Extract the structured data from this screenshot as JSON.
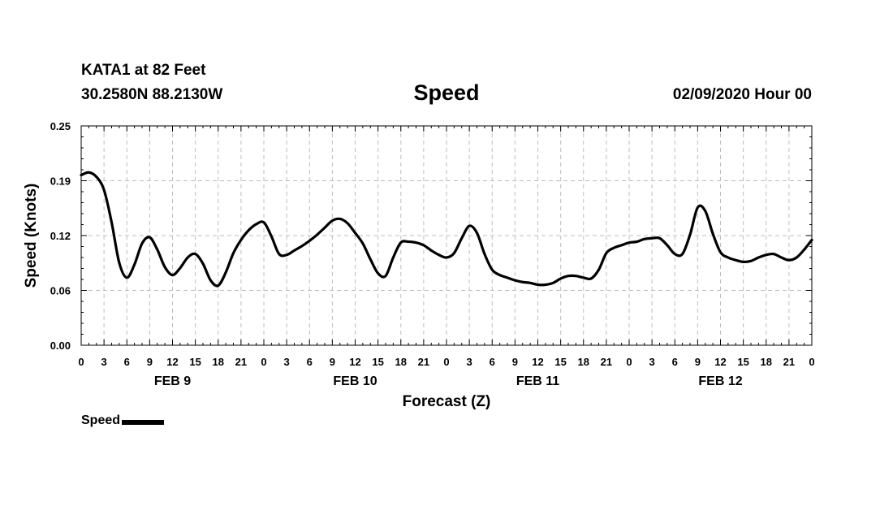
{
  "header": {
    "station": "KATA1 at 82 Feet",
    "coords": "30.2580N 88.2130W",
    "run": "02/09/2020 Hour 00"
  },
  "chart_data": {
    "type": "line",
    "title": "Speed",
    "xlabel": "Forecast (Z)",
    "ylabel": "Speed (Knots)",
    "ylim": [
      0,
      0.25
    ],
    "yticks": [
      "0.00",
      "0.06",
      "0.12",
      "0.19",
      "0.25"
    ],
    "xlim": [
      0,
      96
    ],
    "xtick_hours": [
      0,
      3,
      6,
      9,
      12,
      15,
      18,
      21,
      24,
      27,
      30,
      33,
      36,
      39,
      42,
      45,
      48,
      51,
      54,
      57,
      60,
      63,
      66,
      69,
      72,
      75,
      78,
      81,
      84,
      87,
      90,
      93,
      96
    ],
    "xtick_labels": [
      "0",
      "3",
      "6",
      "9",
      "12",
      "15",
      "18",
      "21",
      "0",
      "3",
      "6",
      "9",
      "12",
      "15",
      "18",
      "21",
      "0",
      "3",
      "6",
      "9",
      "12",
      "15",
      "18",
      "21",
      "0",
      "3",
      "6",
      "9",
      "12",
      "15",
      "18",
      "21",
      "0"
    ],
    "day_labels": [
      {
        "label": "FEB 9",
        "hour": 12
      },
      {
        "label": "FEB 10",
        "hour": 36
      },
      {
        "label": "FEB 11",
        "hour": 60
      },
      {
        "label": "FEB 12",
        "hour": 84
      }
    ],
    "grid": true,
    "legend_position": "bottom-left",
    "series": [
      {
        "name": "Speed",
        "color": "#000000",
        "x": [
          0,
          1,
          2,
          3,
          4,
          5,
          6,
          7,
          8,
          9,
          10,
          11,
          12,
          13,
          14,
          15,
          16,
          17,
          18,
          19,
          20,
          21,
          22,
          23,
          24,
          25,
          26,
          27,
          28,
          29,
          30,
          31,
          32,
          33,
          34,
          35,
          36,
          37,
          38,
          39,
          40,
          41,
          42,
          43,
          44,
          45,
          46,
          47,
          48,
          49,
          50,
          51,
          52,
          53,
          54,
          55,
          56,
          57,
          58,
          59,
          60,
          61,
          62,
          63,
          64,
          65,
          66,
          67,
          68,
          69,
          70,
          71,
          72,
          73,
          74,
          75,
          76,
          77,
          78,
          79,
          80,
          81,
          82,
          83,
          84,
          85,
          86,
          87,
          88,
          89,
          90,
          91,
          92,
          93,
          94,
          95,
          96
        ],
        "values": [
          0.194,
          0.197,
          0.192,
          0.177,
          0.14,
          0.094,
          0.077,
          0.092,
          0.116,
          0.123,
          0.109,
          0.089,
          0.08,
          0.088,
          0.1,
          0.104,
          0.093,
          0.074,
          0.068,
          0.083,
          0.105,
          0.12,
          0.131,
          0.138,
          0.14,
          0.124,
          0.104,
          0.103,
          0.108,
          0.113,
          0.119,
          0.126,
          0.134,
          0.142,
          0.144,
          0.139,
          0.128,
          0.116,
          0.098,
          0.082,
          0.079,
          0.1,
          0.117,
          0.118,
          0.117,
          0.114,
          0.108,
          0.103,
          0.1,
          0.105,
          0.122,
          0.136,
          0.128,
          0.104,
          0.086,
          0.08,
          0.077,
          0.074,
          0.072,
          0.071,
          0.069,
          0.069,
          0.071,
          0.076,
          0.079,
          0.079,
          0.077,
          0.076,
          0.086,
          0.105,
          0.111,
          0.114,
          0.117,
          0.118,
          0.121,
          0.122,
          0.122,
          0.114,
          0.104,
          0.104,
          0.126,
          0.157,
          0.153,
          0.127,
          0.106,
          0.1,
          0.097,
          0.095,
          0.096,
          0.1,
          0.103,
          0.104,
          0.1,
          0.097,
          0.1,
          0.109,
          0.12
        ]
      }
    ]
  }
}
